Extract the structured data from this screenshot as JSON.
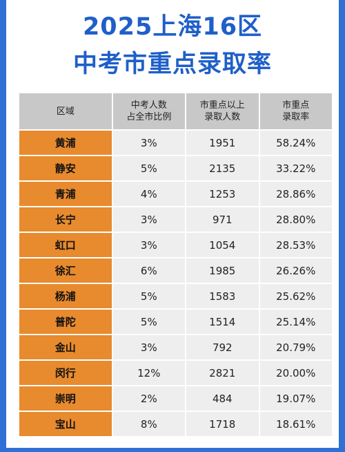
{
  "title": {
    "line1": "2025上海16区",
    "line2": "中考市重点录取率"
  },
  "table": {
    "headers": {
      "district": "区域",
      "share_line1": "中考人数",
      "share_line2": "占全市比例",
      "admitted_line1": "市重点以上",
      "admitted_line2": "录取人数",
      "rate_line1": "市重点",
      "rate_line2": "录取率"
    },
    "rows": [
      {
        "district": "黄浦",
        "share": "3%",
        "admitted": "1951",
        "rate": "58.24%"
      },
      {
        "district": "静安",
        "share": "5%",
        "admitted": "2135",
        "rate": "33.22%"
      },
      {
        "district": "青浦",
        "share": "4%",
        "admitted": "1253",
        "rate": "28.86%"
      },
      {
        "district": "长宁",
        "share": "3%",
        "admitted": "971",
        "rate": "28.80%"
      },
      {
        "district": "虹口",
        "share": "3%",
        "admitted": "1054",
        "rate": "28.53%"
      },
      {
        "district": "徐汇",
        "share": "6%",
        "admitted": "1985",
        "rate": "26.26%"
      },
      {
        "district": "杨浦",
        "share": "5%",
        "admitted": "1583",
        "rate": "25.62%"
      },
      {
        "district": "普陀",
        "share": "5%",
        "admitted": "1514",
        "rate": "25.14%"
      },
      {
        "district": "金山",
        "share": "3%",
        "admitted": "792",
        "rate": "20.79%"
      },
      {
        "district": "闵行",
        "share": "12%",
        "admitted": "2821",
        "rate": "20.00%"
      },
      {
        "district": "崇明",
        "share": "2%",
        "admitted": "484",
        "rate": "19.07%"
      },
      {
        "district": "宝山",
        "share": "8%",
        "admitted": "1718",
        "rate": "18.61%"
      }
    ]
  },
  "colors": {
    "frame_blue": "#2f6fd6",
    "title_blue": "#1f5fc8",
    "district_orange": "#e88a2e",
    "header_gray": "#c8c8c8",
    "cell_gray": "#eeeeee"
  }
}
